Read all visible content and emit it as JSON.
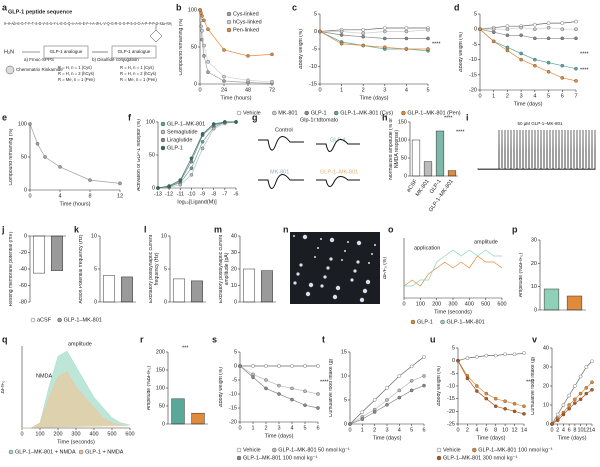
{
  "panel_labels": [
    "a",
    "b",
    "c",
    "d",
    "e",
    "f",
    "g",
    "h",
    "i",
    "j",
    "k",
    "l",
    "m",
    "n",
    "o",
    "p",
    "q",
    "r",
    "s",
    "t",
    "u",
    "v"
  ],
  "panels": {
    "a": {
      "title": "GLP-1 peptide sequence",
      "sequence": "H–H–Aib–E–G–T–F–T–S–D–V–S–S–Y–L–E–G–Q–A–A–K–E–F–I–A–W–L–V–Q–G–R–G–G–P–S–S–G–A–P–P–P–S–Xaa–NH₂",
      "step1": "a) Fmoc-SPPS",
      "step2": "b) Disulfide conjugation",
      "box1": "GLP-1 analogue",
      "box2": "GLP-1 analogue",
      "amine": "H₂N",
      "resin": "Chemmatrix Rinkamide",
      "r_labels_1": [
        "R = H, n = 1 (Cys)",
        "R = H, n = 2 (hCys)",
        "R = Me, n = 1 (Pen)"
      ],
      "r_labels_2": [
        "R = H, n = 1 (Cys)",
        "R = H, n = 2 (hCys)",
        "R = Me, n = 1 (Pen)"
      ]
    },
    "g": {
      "title": "Glp-1r:tdtomato",
      "traces": [
        "Control",
        "GLP-1",
        "MK-801",
        "GLP-1–MK-801"
      ]
    },
    "i": {
      "label": "50 µM GLP-1–MK-801"
    }
  },
  "chart_data": [
    {
      "type": "line",
      "ylabel": "Compound remaining (%)",
      "xlabel": "Time (hours)",
      "x": [
        0,
        1,
        2,
        4,
        8,
        24,
        48,
        72
      ],
      "xlim": [
        0,
        72
      ],
      "xticks": [
        0,
        24,
        48,
        72
      ],
      "ylim": [
        0,
        100
      ],
      "yticks": [
        0,
        50,
        100
      ],
      "legend": "top-right",
      "series": [
        {
          "name": "Cys-linked",
          "color": "#a0a0a0",
          "values": [
            100,
            78,
            60,
            38,
            16,
            4,
            2,
            1
          ]
        },
        {
          "name": "hCys-linked",
          "color": "#d0d0d0",
          "values": [
            100,
            86,
            72,
            52,
            30,
            10,
            5,
            3
          ]
        },
        {
          "name": "Pen-linked",
          "color": "#e08a3c",
          "values": [
            100,
            96,
            92,
            86,
            74,
            46,
            38,
            40
          ]
        }
      ]
    },
    {
      "type": "line",
      "ylabel": "ΔBody weight (%)",
      "xlabel": "Time (days)",
      "x": [
        0,
        1,
        2,
        3,
        4,
        5
      ],
      "xlim": [
        0,
        5
      ],
      "xticks": [
        0,
        1,
        2,
        3,
        4,
        5
      ],
      "ylim": [
        -15,
        5
      ],
      "yticks": [
        -15,
        -10,
        -5,
        0,
        5
      ],
      "legend": "bottom",
      "annotations": [
        "****"
      ],
      "series": [
        {
          "name": "Vehicle",
          "color": "#ffffff",
          "values": [
            0,
            0.5,
            0.5,
            1,
            1,
            1
          ]
        },
        {
          "name": "MK-801",
          "color": "#cccccc",
          "values": [
            0,
            0,
            -0.5,
            0,
            0,
            0.5
          ]
        },
        {
          "name": "GLP-1",
          "color": "#888888",
          "values": [
            0,
            -1,
            -1.5,
            -2,
            -2,
            -2
          ]
        },
        {
          "name": "GLP-1–MK-801 (Cys)",
          "color": "#5aa89a",
          "values": [
            0,
            -3,
            -4,
            -5,
            -5,
            -5.5
          ]
        },
        {
          "name": "GLP-1–MK-801 (Pen)",
          "color": "#e08a3c",
          "values": [
            0,
            -3.5,
            -4,
            -4.5,
            -5,
            -5
          ]
        }
      ]
    },
    {
      "type": "line",
      "ylabel": "ΔBody weight (%)",
      "xlabel": "Time (days)",
      "x": [
        0,
        1,
        2,
        3,
        4,
        5,
        6,
        7
      ],
      "xlim": [
        0,
        7
      ],
      "xticks": [
        0,
        1,
        2,
        3,
        4,
        5,
        6,
        7
      ],
      "ylim": [
        -20,
        5
      ],
      "yticks": [
        -20,
        -15,
        -10,
        -5,
        0,
        5
      ],
      "annotations": [
        "****",
        "****"
      ],
      "series": [
        {
          "color": "#ffffff",
          "values": [
            0,
            0.5,
            1,
            1,
            1.5,
            2,
            2,
            2.5
          ]
        },
        {
          "color": "#cccccc",
          "values": [
            0,
            0,
            0,
            0.5,
            0,
            0.5,
            0,
            0
          ]
        },
        {
          "color": "#888888",
          "values": [
            0,
            -1,
            -2,
            -2,
            -3,
            -3,
            -3,
            -3
          ]
        },
        {
          "color": "#5aa89a",
          "values": [
            0,
            -4,
            -6,
            -8,
            -10,
            -11,
            -12,
            -13
          ]
        },
        {
          "color": "#e08a3c",
          "values": [
            0,
            -4,
            -7,
            -10,
            -12,
            -14,
            -16,
            -17
          ]
        }
      ]
    },
    {
      "type": "line",
      "ylabel": "Compound remaining (%)",
      "xlabel": "Time (hours)",
      "x": [
        0,
        1,
        2,
        4,
        8,
        12
      ],
      "xlim": [
        0,
        12
      ],
      "xticks": [
        0,
        4,
        8,
        12
      ],
      "ylim": [
        0,
        100
      ],
      "yticks": [
        0,
        50,
        100
      ],
      "series": [
        {
          "color": "#a0a0a0",
          "values": [
            100,
            70,
            50,
            35,
            15,
            10
          ]
        }
      ]
    },
    {
      "type": "line",
      "ylabel": "Activation of GLP-1 receptor (%)",
      "xlabel": "log₁₀[Ligand(M)]",
      "x": [
        -13,
        -12,
        -11,
        -10,
        -9,
        -8,
        -7,
        -6
      ],
      "xlim": [
        -13,
        -6
      ],
      "xticks": [
        -13,
        -12,
        -11,
        -10,
        -9,
        -8,
        -7,
        -6
      ],
      "ylim": [
        0,
        100
      ],
      "yticks": [
        0,
        50,
        100
      ],
      "legend": "top-left",
      "series": [
        {
          "name": "GLP-1–MK-801",
          "color": "#5aa89a",
          "values": [
            0,
            2,
            8,
            30,
            70,
            92,
            100,
            100
          ]
        },
        {
          "name": "Semaglutide",
          "color": "#bbbbbb",
          "values": [
            0,
            1,
            5,
            20,
            60,
            90,
            98,
            100
          ]
        },
        {
          "name": "Liraglutide",
          "color": "#888888",
          "values": [
            0,
            2,
            10,
            40,
            80,
            95,
            100,
            100
          ]
        },
        {
          "name": "GLP-1",
          "color": "#2d6e63",
          "values": [
            0,
            3,
            12,
            45,
            82,
            97,
            100,
            100
          ]
        }
      ]
    },
    {
      "type": "bar",
      "ylabel": "Normalized amplitude (% of NMDA response)",
      "categories": [
        "aCSF",
        "MK-801",
        "GLP-1",
        "GLP-1–MK-801"
      ],
      "values": [
        100,
        40,
        125,
        15
      ],
      "colors": [
        "#ffffff",
        "#bbbbbb",
        "#7fb8a8",
        "#e08a3c"
      ],
      "ylim": [
        0,
        150
      ],
      "yticks": [
        0,
        50,
        100,
        150
      ],
      "annotations": [
        "****",
        "****"
      ]
    },
    {
      "type": "bar",
      "ylabel": "Resting membrane potential (mV)",
      "categories": [
        "aCSF",
        "GLP-1–MK-801"
      ],
      "values": [
        -45,
        -42
      ],
      "colors": [
        "#ffffff",
        "#9a9a9a"
      ],
      "ylim": [
        -80,
        0
      ],
      "yticks": [
        -80,
        -60,
        -40,
        -20,
        0
      ],
      "legend": "bottom"
    },
    {
      "type": "bar",
      "ylabel": "Action Potential frequency (Hz)",
      "categories": [
        null,
        null
      ],
      "values": [
        4,
        3.8
      ],
      "colors": [
        "#ffffff",
        "#9a9a9a"
      ],
      "ylim": [
        0,
        10
      ],
      "yticks": [
        0,
        5,
        10
      ]
    },
    {
      "type": "bar",
      "ylabel": "Excitatory postsynaptic current frequency (Hz)",
      "categories": [
        null,
        null
      ],
      "values": [
        3.5,
        3.2
      ],
      "colors": [
        "#ffffff",
        "#9a9a9a"
      ],
      "ylim": [
        0,
        10
      ],
      "yticks": [
        0,
        5,
        10
      ]
    },
    {
      "type": "bar",
      "ylabel": "Excitatory postsynaptic current amplitude (pA)",
      "categories": [
        null,
        null
      ],
      "values": [
        20,
        19
      ],
      "colors": [
        "#ffffff",
        "#9a9a9a"
      ],
      "ylim": [
        0,
        40
      ],
      "yticks": [
        0,
        10,
        20,
        30,
        40
      ]
    },
    {
      "type": "line",
      "ylabel": "ΔF/F₀ (%)",
      "xlabel": "Time (seconds)",
      "x": [
        0,
        50,
        100,
        150,
        200,
        250,
        300,
        350,
        400,
        450,
        500,
        550,
        600
      ],
      "xlim": [
        0,
        600
      ],
      "xticks": [
        0,
        100,
        200,
        300,
        400,
        500,
        600
      ],
      "ylim": [
        0,
        10
      ],
      "markers": false,
      "legend": "bottom",
      "annotations": [
        "application",
        "amplitude"
      ],
      "series": [
        {
          "name": "GLP-1",
          "color": "#e08a3c",
          "values": [
            2,
            3,
            2,
            4,
            5,
            6,
            5,
            6,
            5,
            7,
            6,
            6,
            5
          ]
        },
        {
          "name": "GLP-1–MK-801",
          "color": "#8fd1b8",
          "values": [
            2,
            2,
            3,
            3,
            6,
            7,
            8,
            7,
            8,
            7,
            8,
            7,
            7
          ]
        }
      ]
    },
    {
      "type": "bar",
      "ylabel": "Amplitude (%ΔF/F₀)",
      "categories": [
        null,
        null
      ],
      "values": [
        9,
        6
      ],
      "colors": [
        "#8fd1b8",
        "#e08a3c"
      ],
      "ylim": [
        0,
        30
      ],
      "yticks": [
        0,
        10,
        20,
        30
      ]
    },
    {
      "type": "line",
      "ylabel": "ΔF/F₀",
      "xlabel": "Time (seconds)",
      "x": [
        0,
        50,
        100,
        150,
        200,
        250,
        300,
        350,
        400,
        450,
        500,
        550,
        600
      ],
      "xlim": [
        0,
        600
      ],
      "xticks": [
        0,
        100,
        200,
        300,
        400,
        500,
        600
      ],
      "ylim": [
        0,
        8
      ],
      "markers": false,
      "fill": true,
      "legend": "bottom",
      "annotations": [
        "NMDA",
        "amplitude"
      ],
      "series": [
        {
          "name": "GLP-1–MK-801 + NMDA",
          "color": "#a7dccb",
          "values": [
            0,
            0,
            0.5,
            4,
            7,
            7.5,
            6,
            4.5,
            3,
            2,
            1,
            0.5,
            0.3
          ]
        },
        {
          "name": "GLP-1 + NMDA",
          "color": "#e8c9a0",
          "values": [
            0,
            0,
            0.5,
            3,
            5,
            5.5,
            4,
            3,
            2,
            1,
            0.5,
            0.3,
            0.2
          ]
        }
      ]
    },
    {
      "type": "bar",
      "ylabel": "Amplitude (%ΔF/F₀)",
      "categories": [
        null,
        null
      ],
      "values": [
        70,
        30
      ],
      "colors": [
        "#5aa89a",
        "#e08a3c"
      ],
      "ylim": [
        0,
        200
      ],
      "yticks": [
        0,
        50,
        100,
        150,
        200
      ],
      "annotations": [
        "***"
      ]
    },
    {
      "type": "line",
      "ylabel": "ΔBody weight (%)",
      "xlabel": "Time (days)",
      "x": [
        0,
        1,
        2,
        3,
        4,
        5,
        6
      ],
      "xlim": [
        0,
        6
      ],
      "xticks": [
        0,
        1,
        2,
        3,
        4,
        5,
        6
      ],
      "ylim": [
        -20,
        5
      ],
      "yticks": [
        -20,
        -15,
        -10,
        -5,
        0,
        5
      ],
      "legend": "bottom",
      "annotations": [
        "****"
      ],
      "series": [
        {
          "name": "Vehicle",
          "color": "#ffffff",
          "values": [
            0,
            0,
            0,
            0,
            0,
            0,
            0
          ]
        },
        {
          "name": "GLP-1–MK-801 50 nmol kg⁻¹",
          "color": "#bbbbbb",
          "values": [
            0,
            -3,
            -5,
            -7,
            -8,
            -9,
            -10
          ]
        },
        {
          "name": "GLP-1–MK-801 100 nmol kg⁻¹",
          "color": "#888888",
          "values": [
            0,
            -4,
            -8,
            -10,
            -12,
            -14,
            -15
          ]
        }
      ]
    },
    {
      "type": "line",
      "ylabel": "Cumulative food intake (g)",
      "xlabel": "Time (days)",
      "x": [
        0,
        1,
        2,
        3,
        4,
        5,
        6
      ],
      "xlim": [
        0,
        6
      ],
      "xticks": [
        0,
        1,
        2,
        3,
        4,
        5,
        6
      ],
      "ylim": [
        0,
        15
      ],
      "yticks": [
        0,
        5,
        10,
        15
      ],
      "series": [
        {
          "color": "#ffffff",
          "values": [
            0,
            2.5,
            5,
            7.5,
            10,
            12,
            14
          ]
        },
        {
          "color": "#bbbbbb",
          "values": [
            0,
            1.5,
            3,
            5,
            7,
            9,
            10
          ]
        },
        {
          "color": "#888888",
          "values": [
            0,
            1,
            2.5,
            4,
            5.5,
            7,
            8
          ]
        }
      ]
    },
    {
      "type": "line",
      "ylabel": "ΔBody weight (%)",
      "xlabel": "Time (days)",
      "x": [
        0,
        2,
        4,
        6,
        8,
        10,
        12,
        14
      ],
      "xlim": [
        0,
        14
      ],
      "xticks": [
        0,
        2,
        4,
        6,
        8,
        10,
        12,
        14
      ],
      "ylim": [
        -25,
        5
      ],
      "yticks": [
        -25,
        -20,
        -15,
        -10,
        -5,
        0,
        5
      ],
      "legend": "bottom",
      "annotations": [
        "****"
      ],
      "series": [
        {
          "name": "Vehicle",
          "color": "#ffffff",
          "values": [
            0,
            1,
            1.5,
            2,
            2,
            2.5,
            2.5,
            3
          ]
        },
        {
          "name": "GLP-1–MK-801 100 nmol kg⁻¹",
          "color": "#e08a3c",
          "values": [
            0,
            -6,
            -10,
            -13,
            -15,
            -16,
            -17,
            -18
          ]
        },
        {
          "name": "GLP-1–MK-801 300 nmol kg⁻¹",
          "color": "#b5561c",
          "values": [
            0,
            -7,
            -12,
            -15,
            -18,
            -19,
            -20,
            -21
          ]
        }
      ]
    },
    {
      "type": "line",
      "ylabel": "Cumulative food intake (g)",
      "xlabel": "Time (days)",
      "x": [
        0,
        2,
        4,
        6,
        8,
        10,
        12,
        14
      ],
      "xlim": [
        0,
        14
      ],
      "xticks": [
        0,
        2,
        4,
        6,
        8,
        10,
        12,
        14
      ],
      "ylim": [
        0,
        40
      ],
      "yticks": [
        0,
        10,
        20,
        30,
        40
      ],
      "series": [
        {
          "color": "#ffffff",
          "values": [
            0,
            5,
            10,
            15,
            20,
            25,
            30,
            33
          ]
        },
        {
          "color": "#e08a3c",
          "values": [
            0,
            3,
            6,
            10,
            13,
            16,
            19,
            22
          ]
        },
        {
          "color": "#b5561c",
          "values": [
            0,
            2,
            5,
            8,
            11,
            13,
            16,
            18
          ]
        }
      ]
    }
  ]
}
